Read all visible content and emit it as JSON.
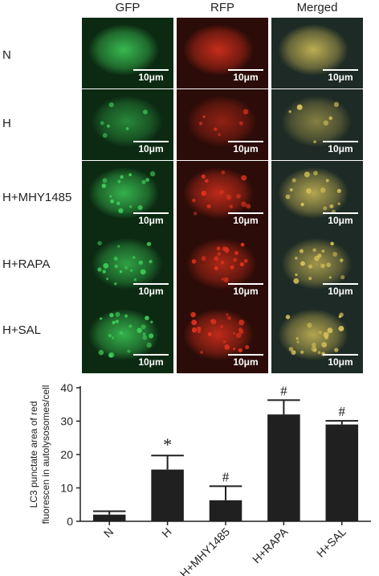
{
  "figure": {
    "columns": [
      "GFP",
      "RFP",
      "Merged"
    ],
    "rows": [
      "N",
      "H",
      "H+MHY1485",
      "H+RAPA",
      "H+SAL"
    ],
    "scale_bar": "10μm",
    "panel_colors": {
      "gfp_bg": "#0c2a12",
      "gfp_cell": "#3fd35a",
      "rfp_bg": "#2b0c08",
      "rfp_cell": "#e2321e",
      "merged_bg": "#1d2a25",
      "merged_cell": "#d9c45a"
    }
  },
  "chart_data": {
    "type": "bar",
    "categories": [
      "N",
      "H",
      "H+MHY1485",
      "H+RAPA",
      "H+SAL"
    ],
    "values": [
      2,
      15.5,
      6.3,
      32,
      29
    ],
    "errors": [
      1,
      4.2,
      4.2,
      4.3,
      1.1
    ],
    "significance": [
      "",
      "*",
      "#",
      "#",
      "#"
    ],
    "ylabel": "LC3 punctate area of red fluorescen in autolysosomes/cell",
    "ylim": [
      0,
      40
    ],
    "yticks": [
      0,
      10,
      20,
      30,
      40
    ],
    "bar_color": "#202020"
  }
}
